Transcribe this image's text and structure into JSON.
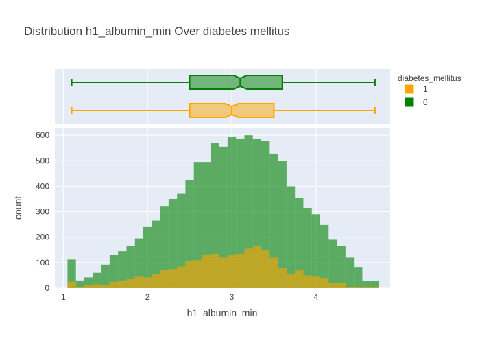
{
  "chart_data": {
    "type": "histogram",
    "title": "Distribution h1_albumin_min Over diabetes mellitus",
    "xlabel": "h1_albumin_min",
    "ylabel": "count",
    "barmode": "overlay",
    "bin_width": 0.1,
    "x_bin_start": 1.05,
    "x_range": [
      0.9,
      4.88
    ],
    "y_range": [
      0,
      630
    ],
    "x_ticks": [
      1,
      2,
      3,
      4
    ],
    "y_ticks": [
      0,
      100,
      200,
      300,
      400,
      500,
      600
    ],
    "legend": {
      "title": "diabetes_mellitus",
      "position": "top-right"
    },
    "series": [
      {
        "name": "1",
        "color": "#FFA500",
        "box": {
          "min": 1.1,
          "q1": 2.5,
          "median": 3.0,
          "q3": 3.5,
          "max": 4.7
        },
        "counts": [
          25,
          5,
          10,
          15,
          12,
          25,
          30,
          35,
          45,
          42,
          55,
          70,
          75,
          85,
          105,
          110,
          130,
          135,
          120,
          130,
          135,
          155,
          165,
          150,
          120,
          80,
          55,
          70,
          50,
          45,
          40,
          20,
          20,
          5,
          5,
          5,
          5
        ]
      },
      {
        "name": "0",
        "color": "#008000",
        "box": {
          "min": 1.1,
          "q1": 2.5,
          "median": 3.1,
          "q3": 3.6,
          "max": 4.7
        },
        "counts": [
          112,
          30,
          42,
          60,
          92,
          130,
          145,
          165,
          195,
          240,
          265,
          320,
          350,
          370,
          425,
          495,
          495,
          570,
          555,
          595,
          585,
          600,
          585,
          578,
          528,
          500,
          400,
          355,
          315,
          290,
          248,
          190,
          165,
          120,
          83,
          28,
          28
        ]
      }
    ]
  }
}
